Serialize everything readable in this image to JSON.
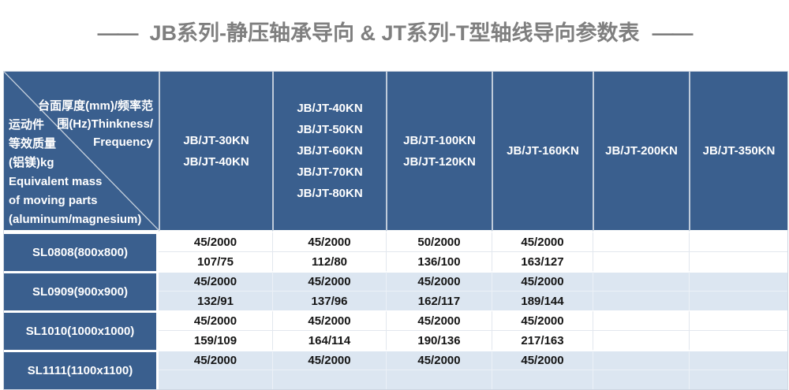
{
  "title": {
    "dash_left": "——",
    "text": "JB系列-静压轴承导向 & JT系列-T型轴线导向参数表",
    "dash_right": "——"
  },
  "table": {
    "corner": {
      "top_right_lines": [
        "台面厚度(mm)/频率范",
        "围(Hz)Thinkness/",
        "Frequency"
      ],
      "bottom_left_lines": [
        "运动件",
        "等效质量",
        "(铝镁)kg",
        "Equivalent mass",
        "of moving parts",
        "(aluminum/magnesium)"
      ]
    },
    "columns": [
      {
        "lines": [
          "JB/JT-30KN",
          "JB/JT-40KN"
        ]
      },
      {
        "lines": [
          "JB/JT-40KN",
          "JB/JT-50KN",
          "JB/JT-60KN",
          "JB/JT-70KN",
          "JB/JT-80KN"
        ]
      },
      {
        "lines": [
          "JB/JT-100KN",
          "JB/JT-120KN"
        ]
      },
      {
        "lines": [
          "JB/JT-160KN"
        ]
      },
      {
        "lines": [
          "JB/JT-200KN"
        ]
      },
      {
        "lines": [
          "JB/JT-350KN"
        ]
      }
    ],
    "rows": [
      {
        "label": "SL0808(800x800)",
        "sub_rows": [
          [
            "45/2000",
            "45/2000",
            "50/2000",
            "45/2000",
            "",
            ""
          ],
          [
            "107/75",
            "112/80",
            "136/100",
            "163/127",
            "",
            ""
          ]
        ]
      },
      {
        "label": "SL0909(900x900)",
        "sub_rows": [
          [
            "45/2000",
            "45/2000",
            "45/2000",
            "45/2000",
            "",
            ""
          ],
          [
            "132/91",
            "137/96",
            "162/117",
            "189/144",
            "",
            ""
          ]
        ]
      },
      {
        "label": "SL1010(1000x1000)",
        "sub_rows": [
          [
            "45/2000",
            "45/2000",
            "45/2000",
            "45/2000",
            "",
            ""
          ],
          [
            "159/109",
            "164/114",
            "190/136",
            "217/163",
            "",
            ""
          ]
        ]
      },
      {
        "label": "SL1111(1100x1100)",
        "sub_rows": [
          [
            "45/2000",
            "45/2000",
            "45/2000",
            "45/2000",
            "",
            ""
          ],
          [
            "",
            "",
            "",
            "",
            "",
            ""
          ]
        ]
      }
    ]
  },
  "colors": {
    "header_blue": "#3A5F8E",
    "band_light_blue": "#DCE6F1",
    "band_white": "#FFFFFF",
    "title_gray": "#7F7F7F",
    "data_text": "#141414",
    "grid_line": "#E2E7EE"
  }
}
